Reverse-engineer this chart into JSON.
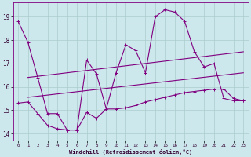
{
  "background_color": "#cce8ec",
  "line_color": "#800080",
  "grid_color": "#aacccc",
  "xlabel": "Windchill (Refroidissement éolien,°C)",
  "xlim": [
    -0.5,
    23.5
  ],
  "ylim": [
    13.7,
    19.6
  ],
  "yticks": [
    14,
    15,
    16,
    17,
    18,
    19
  ],
  "xticks": [
    0,
    1,
    2,
    3,
    4,
    5,
    6,
    7,
    8,
    9,
    10,
    11,
    12,
    13,
    14,
    15,
    16,
    17,
    18,
    19,
    20,
    21,
    22,
    23
  ],
  "series": [
    {
      "x": [
        0,
        1,
        2,
        3,
        4,
        5,
        6,
        7,
        8,
        9,
        10,
        11,
        12,
        13,
        14,
        15,
        16,
        17,
        18,
        19,
        20,
        21,
        22,
        23
      ],
      "y": [
        18.8,
        17.9,
        16.4,
        14.85,
        14.85,
        14.15,
        14.15,
        17.15,
        16.55,
        15.05,
        16.6,
        17.8,
        17.55,
        16.6,
        19.0,
        19.3,
        19.2,
        18.8,
        17.5,
        16.85,
        17.0,
        15.5,
        15.4,
        15.4
      ],
      "marker": "+"
    },
    {
      "x": [
        1,
        23
      ],
      "y": [
        16.4,
        17.5
      ],
      "marker": null
    },
    {
      "x": [
        1,
        23
      ],
      "y": [
        15.55,
        16.6
      ],
      "marker": null
    },
    {
      "x": [
        0,
        1,
        2,
        3,
        4,
        5,
        6,
        7,
        8,
        9,
        10,
        11,
        12,
        13,
        14,
        15,
        16,
        17,
        18,
        19,
        20,
        21,
        22,
        23
      ],
      "y": [
        15.3,
        15.35,
        14.85,
        14.35,
        14.2,
        14.15,
        14.15,
        14.9,
        14.65,
        15.05,
        15.05,
        15.1,
        15.2,
        15.35,
        15.45,
        15.55,
        15.65,
        15.75,
        15.8,
        15.85,
        15.9,
        15.9,
        15.5,
        15.4
      ],
      "marker": "+"
    }
  ]
}
